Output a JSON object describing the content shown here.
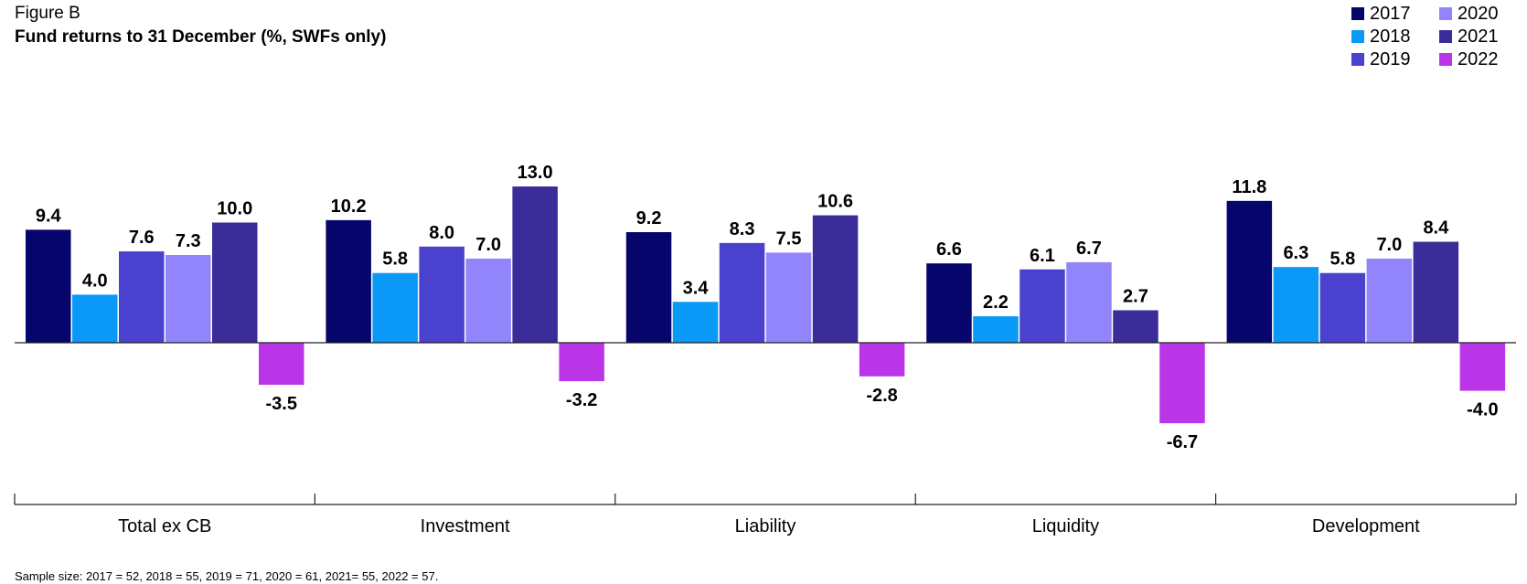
{
  "figure": {
    "label": "Figure B",
    "title": "Fund returns to 31 December (%, SWFs only)",
    "note": "Sample size: 2017 = 52, 2018 = 55, 2019 = 71, 2020 = 61, 2021= 55, 2022 = 57."
  },
  "legend": [
    {
      "name": "2017",
      "color": "#05056b"
    },
    {
      "name": "2018",
      "color": "#0b99f7"
    },
    {
      "name": "2019",
      "color": "#4a41cf"
    },
    {
      "name": "2020",
      "color": "#9284fb"
    },
    {
      "name": "2021",
      "color": "#3a2d99"
    },
    {
      "name": "2022",
      "color": "#bb35e8"
    }
  ],
  "chart_data": {
    "type": "bar",
    "title": "Fund returns to 31 December (%, SWFs only)",
    "categories": [
      "Total ex CB",
      "Investment",
      "Liability",
      "Liquidity",
      "Development"
    ],
    "series": [
      {
        "name": "2017",
        "color": "#05056b",
        "values": [
          9.4,
          10.2,
          9.2,
          6.6,
          11.8
        ]
      },
      {
        "name": "2018",
        "color": "#0b99f7",
        "values": [
          4.0,
          5.8,
          3.4,
          2.2,
          6.3
        ]
      },
      {
        "name": "2019",
        "color": "#4a41cf",
        "values": [
          7.6,
          8.0,
          8.3,
          6.1,
          5.8
        ]
      },
      {
        "name": "2020",
        "color": "#9284fb",
        "values": [
          7.3,
          7.0,
          7.5,
          6.7,
          7.0
        ]
      },
      {
        "name": "2021",
        "color": "#3a2d99",
        "values": [
          10.0,
          13.0,
          10.6,
          2.7,
          8.4
        ]
      },
      {
        "name": "2022",
        "color": "#bb35e8",
        "values": [
          -3.5,
          -3.2,
          -2.8,
          -6.7,
          -4.0
        ]
      }
    ],
    "grid": false,
    "legend_position": "top-right"
  }
}
